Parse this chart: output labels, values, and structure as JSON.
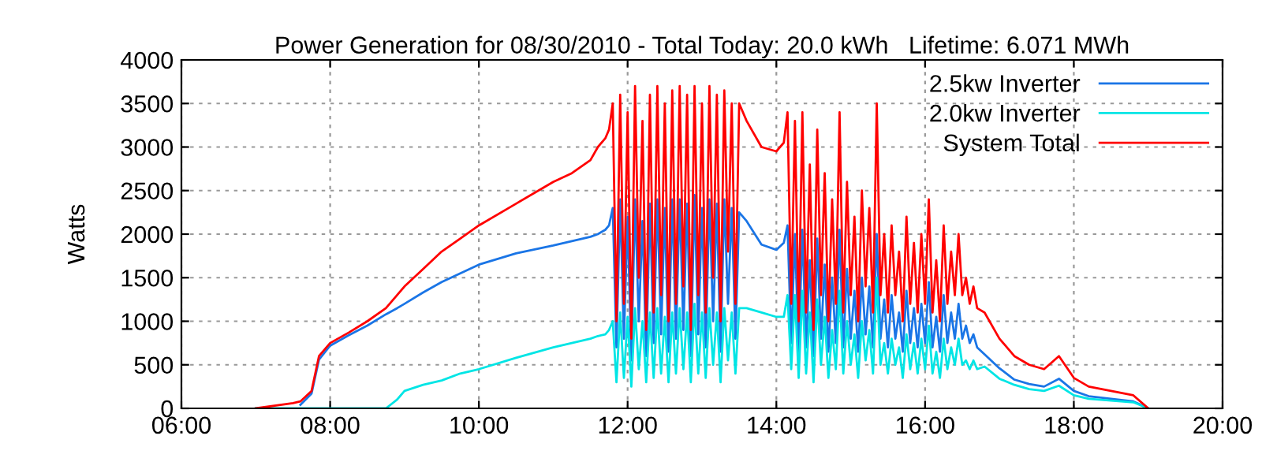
{
  "chart_data": {
    "type": "line",
    "title": "Power Generation for 08/30/2010 - Total Today: 20.0 kWh   Lifetime: 6.071 MWh",
    "ylabel": "Watts",
    "x": [
      7.0,
      7.5,
      7.6,
      7.75,
      7.85,
      8.0,
      8.25,
      8.5,
      8.75,
      8.9,
      9.0,
      9.25,
      9.5,
      9.75,
      10.0,
      10.5,
      11.0,
      11.25,
      11.5,
      11.6,
      11.7,
      11.75,
      11.8,
      11.85,
      11.9,
      11.95,
      12.0,
      12.05,
      12.1,
      12.15,
      12.2,
      12.25,
      12.3,
      12.35,
      12.4,
      12.45,
      12.5,
      12.55,
      12.6,
      12.65,
      12.7,
      12.75,
      12.8,
      12.85,
      12.9,
      12.95,
      13.0,
      13.05,
      13.1,
      13.15,
      13.2,
      13.25,
      13.3,
      13.35,
      13.4,
      13.45,
      13.5,
      13.6,
      13.8,
      14.0,
      14.1,
      14.15,
      14.2,
      14.25,
      14.3,
      14.35,
      14.4,
      14.45,
      14.5,
      14.55,
      14.6,
      14.65,
      14.7,
      14.75,
      14.8,
      14.85,
      14.9,
      14.95,
      15.0,
      15.05,
      15.1,
      15.15,
      15.2,
      15.25,
      15.3,
      15.35,
      15.4,
      15.45,
      15.5,
      15.55,
      15.6,
      15.65,
      15.7,
      15.75,
      15.8,
      15.85,
      15.9,
      15.95,
      16.0,
      16.05,
      16.1,
      16.15,
      16.2,
      16.25,
      16.3,
      16.35,
      16.4,
      16.45,
      16.5,
      16.55,
      16.6,
      16.65,
      16.7,
      16.8,
      17.0,
      17.2,
      17.4,
      17.6,
      17.8,
      18.0,
      18.2,
      18.5,
      18.8,
      19.0
    ],
    "series": [
      {
        "name": "2.5kw Inverter",
        "color": "#1a75e6",
        "values": [
          null,
          null,
          40,
          170,
          560,
          720,
          840,
          950,
          1080,
          1150,
          1200,
          1330,
          1450,
          1550,
          1650,
          1780,
          1870,
          1920,
          1970,
          2000,
          2050,
          2100,
          2300,
          700,
          2400,
          800,
          2200,
          550,
          2400,
          1000,
          2150,
          600,
          2350,
          750,
          2400,
          850,
          2300,
          650,
          2400,
          800,
          2400,
          900,
          2350,
          600,
          2450,
          850,
          2300,
          700,
          2400,
          1000,
          2350,
          650,
          2400,
          1200,
          2300,
          800,
          2250,
          2150,
          1880,
          1820,
          1900,
          2100,
          750,
          2000,
          650,
          2050,
          700,
          1700,
          600,
          1950,
          800,
          1650,
          650,
          1500,
          750,
          2050,
          700,
          1600,
          800,
          1350,
          650,
          1500,
          850,
          1400,
          700,
          2000,
          800,
          1250,
          700,
          1300,
          800,
          1100,
          650,
          1350,
          750,
          1150,
          700,
          1200,
          750,
          1450,
          700,
          1050,
          650,
          1300,
          750,
          1100,
          800,
          1200,
          800,
          950,
          750,
          850,
          700,
          620,
          460,
          330,
          280,
          250,
          340,
          200,
          140,
          110,
          80,
          0
        ]
      },
      {
        "name": "2.0kw Inverter",
        "color": "#00e5e5",
        "values": [
          0,
          0,
          0,
          0,
          0,
          0,
          0,
          0,
          0,
          100,
          200,
          270,
          320,
          400,
          450,
          580,
          700,
          750,
          800,
          830,
          850,
          900,
          1000,
          300,
          1100,
          350,
          1050,
          250,
          1150,
          450,
          1000,
          300,
          1100,
          350,
          1150,
          400,
          1050,
          300,
          1100,
          400,
          1150,
          450,
          1100,
          300,
          1200,
          400,
          1100,
          350,
          1150,
          500,
          1100,
          300,
          1150,
          550,
          1100,
          400,
          1150,
          1150,
          1100,
          1050,
          1050,
          1300,
          450,
          1300,
          350,
          1350,
          400,
          1100,
          300,
          1250,
          500,
          1050,
          350,
          900,
          450,
          1350,
          400,
          1000,
          500,
          850,
          350,
          1000,
          550,
          900,
          400,
          1500,
          500,
          750,
          400,
          800,
          500,
          700,
          350,
          850,
          450,
          750,
          400,
          800,
          450,
          950,
          400,
          650,
          350,
          800,
          450,
          700,
          500,
          800,
          500,
          550,
          450,
          550,
          450,
          480,
          340,
          270,
          220,
          200,
          260,
          150,
          110,
          90,
          70,
          0
        ]
      },
      {
        "name": "System Total",
        "color": "#ff0000",
        "values": [
          0,
          60,
          80,
          200,
          600,
          750,
          870,
          1000,
          1150,
          1300,
          1400,
          1600,
          1800,
          1950,
          2100,
          2350,
          2600,
          2700,
          2850,
          3000,
          3100,
          3200,
          3500,
          1000,
          3600,
          1200,
          3400,
          800,
          3700,
          1500,
          3300,
          900,
          3600,
          1100,
          3700,
          1300,
          3500,
          1000,
          3650,
          1200,
          3700,
          1400,
          3600,
          900,
          3700,
          1300,
          3500,
          1100,
          3700,
          1500,
          3600,
          1000,
          3650,
          1800,
          3500,
          1200,
          3500,
          3300,
          3000,
          2950,
          3050,
          3400,
          1200,
          3300,
          1000,
          3400,
          1100,
          2800,
          900,
          3200,
          1300,
          2700,
          1000,
          2400,
          1200,
          3400,
          1100,
          2600,
          1300,
          2200,
          1000,
          2500,
          1400,
          2300,
          1100,
          3500,
          1300,
          2000,
          1100,
          2100,
          1300,
          1800,
          1000,
          2200,
          1200,
          1900,
          1100,
          2000,
          1200,
          2400,
          1100,
          1700,
          1000,
          2100,
          1200,
          1800,
          1300,
          2000,
          1300,
          1500,
          1200,
          1400,
          1150,
          1100,
          800,
          600,
          500,
          450,
          600,
          350,
          250,
          200,
          150,
          0
        ]
      }
    ],
    "xlim": [
      6,
      20
    ],
    "xticks": [
      {
        "value": 6,
        "label": "06:00"
      },
      {
        "value": 8,
        "label": "08:00"
      },
      {
        "value": 10,
        "label": "10:00"
      },
      {
        "value": 12,
        "label": "12:00"
      },
      {
        "value": 14,
        "label": "14:00"
      },
      {
        "value": 16,
        "label": "16:00"
      },
      {
        "value": 18,
        "label": "18:00"
      },
      {
        "value": 20,
        "label": "20:00"
      }
    ],
    "ylim": [
      0,
      4000
    ],
    "yticks": [
      0,
      500,
      1000,
      1500,
      2000,
      2500,
      3000,
      3500,
      4000
    ],
    "grid": true,
    "legend": "top right",
    "line_style": "solid",
    "marker": "none"
  }
}
